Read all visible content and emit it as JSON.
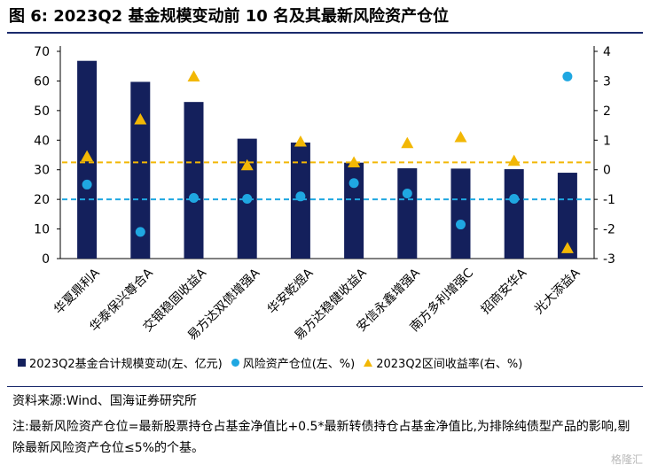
{
  "title": "图 6:  2023Q2 基金规模变动前 10 名及其最新风险资产仓位",
  "chart_data": {
    "type": "bar",
    "categories": [
      "华夏鼎利A",
      "华泰保兴尊合A",
      "交银稳固收益A",
      "易方达双债增强A",
      "华安乾煜A",
      "易方达稳健收益A",
      "安信永鑫增强A",
      "南方多利增强C",
      "招商安华A",
      "光大添益A"
    ],
    "series": [
      {
        "name": "2023Q2基金合计规模变动(左、亿元)",
        "type": "bar",
        "axis": "left",
        "values": [
          66.8,
          59.7,
          52.9,
          40.5,
          39.2,
          32.4,
          30.5,
          30.4,
          30.2,
          29.0
        ]
      },
      {
        "name": "风险资产仓位(左、%)",
        "type": "scatter",
        "axis": "left",
        "values": [
          25.0,
          9.0,
          20.5,
          20.2,
          21.0,
          25.5,
          22.0,
          11.5,
          20.2,
          61.5
        ]
      },
      {
        "name": "2023Q2区间收益率(右、%)",
        "type": "scatter",
        "axis": "right",
        "values": [
          0.45,
          1.7,
          3.15,
          0.15,
          0.95,
          0.25,
          0.9,
          1.1,
          0.3,
          -2.65
        ]
      }
    ],
    "reference_lines": [
      {
        "axis": "left",
        "value": 20,
        "color": "#1fa7e1",
        "style": "dashed"
      },
      {
        "axis": "right",
        "value": 0.25,
        "color": "#f2b705",
        "style": "dashed"
      }
    ],
    "y_left": {
      "min": 0,
      "max": 70,
      "ticks": [
        0,
        10,
        20,
        30,
        40,
        50,
        60,
        70
      ]
    },
    "y_right": {
      "min": -3,
      "max": 4,
      "ticks": [
        -3,
        -2,
        -1,
        0,
        1,
        2,
        3,
        4
      ]
    },
    "colors": {
      "bar": "#14205c",
      "dot": "#1fa7e1",
      "triangle": "#f2b705"
    },
    "grid": false,
    "legend_position": "bottom"
  },
  "legend": {
    "bar_label": "2023Q2基金合计规模变动(左、亿元)",
    "dot_label": "风险资产仓位(左、%)",
    "tri_label": "2023Q2区间收益率(右、%)"
  },
  "source": "资料来源:Wind、国海证券研究所",
  "note": "注:最新风险资产仓位=最新股票持仓占基金净值比+0.5*最新转债持仓占基金净值比,为排除纯债型产品的影响,剔除最新风险资产仓位≤5%的个基。",
  "watermark": "格隆汇"
}
